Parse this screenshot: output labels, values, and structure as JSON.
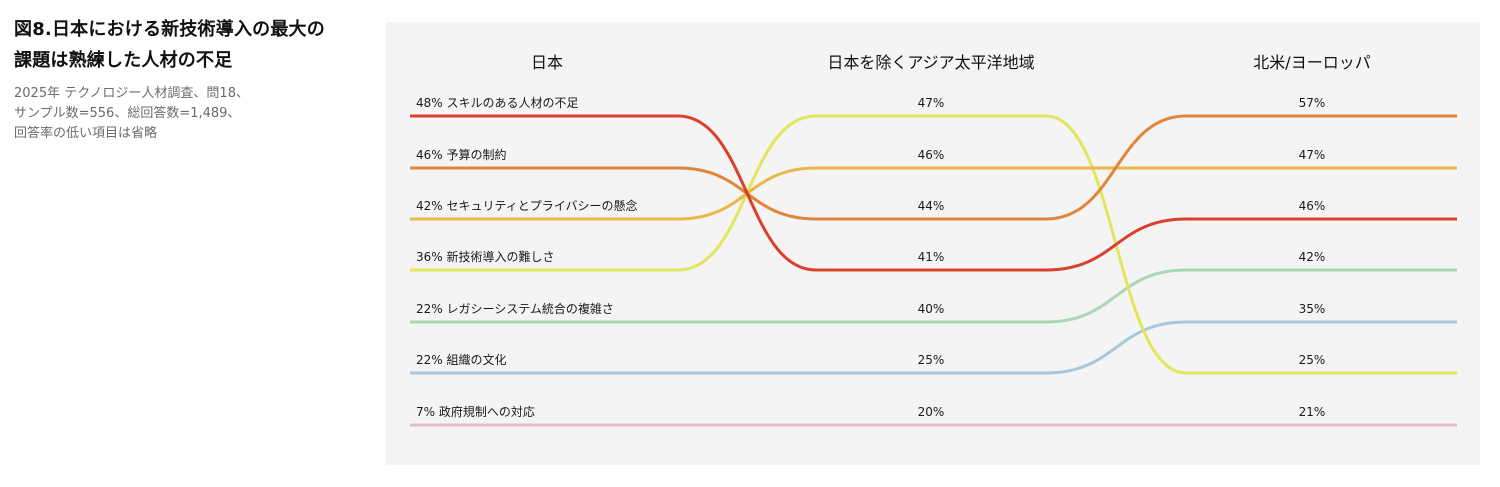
{
  "caption": {
    "title_lines": [
      "図8.日本における新技術導入の最大の",
      "課題は熟練した人材の不足"
    ],
    "subtitle_lines": [
      "2025年 テクノロジー人材調査、問18、",
      "サンプル数=556、総回答数=1,489、",
      "回答率の低い項目は省略"
    ]
  },
  "chart_data": {
    "type": "bump",
    "columns": [
      "日本",
      "日本を除くアジア太平洋地域",
      "北米/ヨーロッパ"
    ],
    "series": [
      {
        "name": "スキルのある人材の不足",
        "color": "#d9412c",
        "values": [
          48,
          41,
          46
        ],
        "ranks": [
          0,
          3,
          2
        ]
      },
      {
        "name": "予算の制約",
        "color": "#e0853a",
        "values": [
          46,
          44,
          57
        ],
        "ranks": [
          1,
          2,
          0
        ]
      },
      {
        "name": "セキュリティとプライバシーの懸念",
        "color": "#e7b94a",
        "values": [
          42,
          46,
          47
        ],
        "ranks": [
          2,
          1,
          1
        ]
      },
      {
        "name": "新技術導入の難しさ",
        "color": "#e2e65c",
        "values": [
          36,
          47,
          25
        ],
        "ranks": [
          3,
          0,
          5
        ]
      },
      {
        "name": "レガシーシステム統合の複雑さ",
        "color": "#a9d8b5",
        "values": [
          22,
          40,
          42
        ],
        "ranks": [
          4,
          4,
          3
        ]
      },
      {
        "name": "組織の文化",
        "color": "#a8c7da",
        "values": [
          22,
          25,
          35
        ],
        "ranks": [
          5,
          5,
          4
        ]
      },
      {
        "name": "政府規制への対応",
        "color": "#e5bcc9",
        "values": [
          7,
          20,
          21
        ],
        "ranks": [
          6,
          6,
          6
        ]
      }
    ],
    "rank_labels": [
      [
        "48% スキルのある人材の不足",
        "46% 予算の制約",
        "42% セキュリティとプライバシーの懸念",
        "36% 新技術導入の難しさ",
        "22% レガシーシステム統合の複雑さ",
        "22% 組織の文化",
        "7% 政府規制への対応"
      ],
      [
        "47%",
        "46%",
        "44%",
        "41%",
        "40%",
        "25%",
        "20%"
      ],
      [
        "57%",
        "47%",
        "46%",
        "42%",
        "35%",
        "25%",
        "21%"
      ]
    ]
  }
}
